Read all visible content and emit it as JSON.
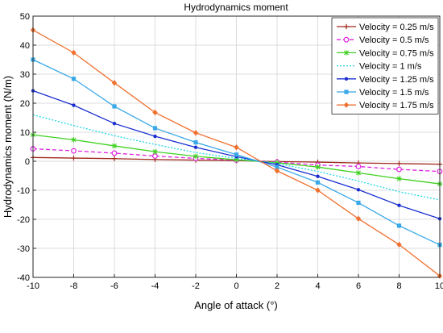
{
  "chart_data": {
    "type": "line",
    "title": "Hydrodynamics moment",
    "xlabel": "Angle of attack (°)",
    "ylabel": "Hydrodynamics moment (N/m)",
    "xlim": [
      -10,
      10
    ],
    "ylim": [
      -40,
      50
    ],
    "xticks": [
      "-10",
      "-8",
      "-6",
      "-4",
      "-2",
      "0",
      "2",
      "4",
      "6",
      "8",
      "10"
    ],
    "yticks": [
      "-40",
      "-30",
      "-20",
      "-10",
      "0",
      "10",
      "20",
      "30",
      "40",
      "50"
    ],
    "grid": true,
    "legend_position": "top-right",
    "x": [
      -10,
      -8,
      -6,
      -4,
      -2,
      0,
      2,
      4,
      6,
      8,
      10
    ],
    "series": [
      {
        "name": "Velocity = 0.25 m/s",
        "color": "#a0281c",
        "marker": "plus",
        "dash": "solid",
        "values": [
          1.3,
          1.1,
          0.9,
          0.6,
          0.4,
          0.2,
          -0.1,
          -0.3,
          -0.6,
          -0.8,
          -1.0
        ]
      },
      {
        "name": "Velocity = 0.5 m/s",
        "color": "#e020e0",
        "marker": "circle",
        "dash": "dashed",
        "values": [
          4.3,
          3.6,
          2.8,
          1.8,
          1.0,
          0.4,
          -0.3,
          -1.3,
          -1.8,
          -2.8,
          -3.5
        ]
      },
      {
        "name": "Velocity = 0.75 m/s",
        "color": "#40d020",
        "marker": "asterisk",
        "dash": "solid",
        "values": [
          9.1,
          7.4,
          5.3,
          3.3,
          1.7,
          0.5,
          -0.5,
          -2.0,
          -4.0,
          -6.0,
          -7.8
        ]
      },
      {
        "name": "Velocity = 1 m/s",
        "color": "#20d8e8",
        "marker": "none",
        "dash": "dotted",
        "values": [
          16.0,
          12.3,
          8.8,
          5.8,
          3.0,
          1.0,
          -0.8,
          -3.5,
          -6.8,
          -10.5,
          -13.3
        ]
      },
      {
        "name": "Velocity = 1.25 m/s",
        "color": "#1a2ed0",
        "marker": "dot",
        "dash": "solid",
        "values": [
          24.3,
          19.3,
          13.0,
          8.6,
          4.8,
          1.6,
          -1.2,
          -5.2,
          -9.8,
          -15.2,
          -19.8
        ]
      },
      {
        "name": "Velocity = 1.5 m/s",
        "color": "#38a8e8",
        "marker": "square",
        "dash": "solid",
        "values": [
          35.0,
          28.4,
          18.9,
          11.4,
          6.5,
          2.3,
          -2.0,
          -7.3,
          -14.3,
          -22.2,
          -28.8
        ]
      },
      {
        "name": "Velocity = 1.75 m/s",
        "color": "#f07030",
        "marker": "diamond",
        "dash": "solid",
        "values": [
          45.2,
          37.4,
          27.0,
          16.8,
          9.8,
          4.8,
          -3.3,
          -10.0,
          -19.8,
          -28.7,
          -39.5
        ]
      }
    ]
  }
}
